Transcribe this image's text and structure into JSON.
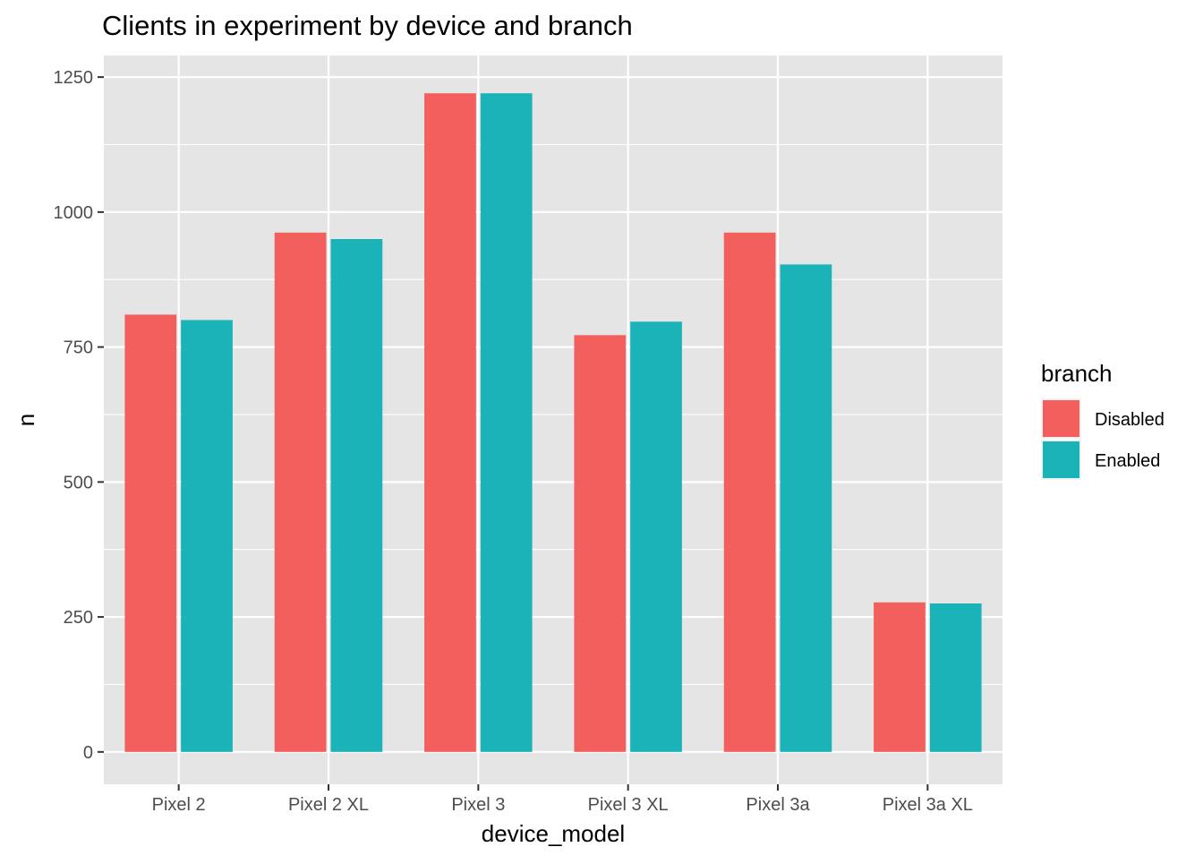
{
  "chart_data": {
    "type": "bar",
    "title": "Clients in experiment by device and branch",
    "xlabel": "device_model",
    "ylabel": "n",
    "categories": [
      "Pixel 2",
      "Pixel 2 XL",
      "Pixel 3",
      "Pixel 3 XL",
      "Pixel 3a",
      "Pixel 3a XL"
    ],
    "series": [
      {
        "name": "Disabled",
        "color": "#F25F5C",
        "values": [
          810,
          962,
          1220,
          772,
          962,
          277
        ]
      },
      {
        "name": "Enabled",
        "color": "#19B3B8",
        "values": [
          800,
          950,
          1220,
          797,
          903,
          275
        ]
      }
    ],
    "ylim": [
      -60,
      1290
    ],
    "yticks": [
      0,
      250,
      500,
      750,
      1000,
      1250
    ],
    "grid": true,
    "legend": {
      "title": "branch",
      "position": "right"
    },
    "panel_color": "#E5E5E5",
    "grid_color": "#FFFFFF"
  }
}
